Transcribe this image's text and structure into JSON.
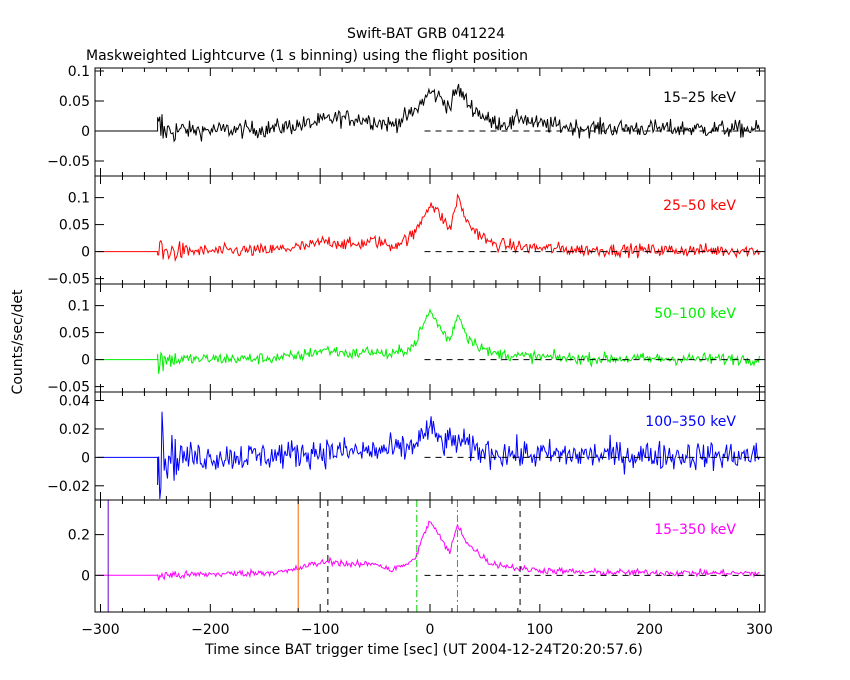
{
  "title": "Swift-BAT GRB 041224",
  "subtitle": "Maskweighted Lightcurve (1 s binning) using the flight position",
  "chart_data": {
    "type": "line",
    "xlabel": "Time since BAT trigger time [sec] (UT 2004-12-24T20:20:57.6)",
    "ylabel": "Counts/sec/det",
    "xlim": [
      -305,
      305
    ],
    "x_ticks": [
      -300,
      -200,
      -100,
      0,
      100,
      200,
      300
    ],
    "x_tick_labels": [
      "−300",
      "−200",
      "−100",
      "0",
      "100",
      "200",
      "300"
    ],
    "data_start": -248,
    "flat_before_start": true,
    "zero_reference_dashed": true,
    "grid": false,
    "panels": [
      {
        "label": "15–25 keV",
        "color": "#000000",
        "ylim": [
          -0.075,
          0.105
        ],
        "y_ticks": [
          -0.05,
          0,
          0.05,
          0.1
        ],
        "y_tick_labels": [
          "−0.05",
          "0",
          "0.05",
          "0.1"
        ],
        "noise": 0.012,
        "envelope": [
          [
            -248,
            0.0
          ],
          [
            -150,
            0.003
          ],
          [
            -110,
            0.012
          ],
          [
            -85,
            0.022
          ],
          [
            -60,
            0.02
          ],
          [
            -35,
            0.01
          ],
          [
            -15,
            0.03
          ],
          [
            0,
            0.065
          ],
          [
            10,
            0.055
          ],
          [
            18,
            0.04
          ],
          [
            25,
            0.072
          ],
          [
            35,
            0.045
          ],
          [
            55,
            0.015
          ],
          [
            75,
            0.012
          ],
          [
            82,
            0.025
          ],
          [
            95,
            0.012
          ],
          [
            140,
            0.005
          ],
          [
            300,
            0.003
          ]
        ]
      },
      {
        "label": "25–50 keV",
        "color": "#ff0000",
        "ylim": [
          -0.06,
          0.14
        ],
        "y_ticks": [
          -0.05,
          0,
          0.05,
          0.1
        ],
        "y_tick_labels": [
          "−0.05",
          "0",
          "0.05",
          "0.1"
        ],
        "noise": 0.01,
        "envelope": [
          [
            -248,
            0.0
          ],
          [
            -150,
            0.002
          ],
          [
            -110,
            0.01
          ],
          [
            -95,
            0.02
          ],
          [
            -70,
            0.012
          ],
          [
            -50,
            0.02
          ],
          [
            -35,
            0.01
          ],
          [
            -15,
            0.03
          ],
          [
            0,
            0.09
          ],
          [
            12,
            0.06
          ],
          [
            18,
            0.04
          ],
          [
            25,
            0.1
          ],
          [
            35,
            0.05
          ],
          [
            55,
            0.015
          ],
          [
            85,
            0.008
          ],
          [
            140,
            0.003
          ],
          [
            300,
            0.002
          ]
        ]
      },
      {
        "label": "50–100 keV",
        "color": "#00ee00",
        "ylim": [
          -0.06,
          0.14
        ],
        "y_ticks": [
          -0.05,
          0,
          0.05,
          0.1
        ],
        "y_tick_labels": [
          "−0.05",
          "0",
          "0.05",
          "0.1"
        ],
        "noise": 0.009,
        "envelope": [
          [
            -248,
            0.0
          ],
          [
            -150,
            0.002
          ],
          [
            -120,
            0.006
          ],
          [
            -110,
            0.012
          ],
          [
            -95,
            0.018
          ],
          [
            -70,
            0.01
          ],
          [
            -55,
            0.016
          ],
          [
            -35,
            0.008
          ],
          [
            -15,
            0.025
          ],
          [
            0,
            0.09
          ],
          [
            12,
            0.05
          ],
          [
            18,
            0.035
          ],
          [
            25,
            0.085
          ],
          [
            35,
            0.04
          ],
          [
            55,
            0.012
          ],
          [
            85,
            0.006
          ],
          [
            140,
            0.002
          ],
          [
            300,
            0.001
          ]
        ]
      },
      {
        "label": "100–350 keV",
        "color": "#0000ff",
        "ylim": [
          -0.03,
          0.046
        ],
        "y_ticks": [
          -0.02,
          0,
          0.02,
          0.04
        ],
        "y_tick_labels": [
          "−0.02",
          "0",
          "0.02",
          "0.04"
        ],
        "noise": 0.0085,
        "envelope": [
          [
            -248,
            0.0
          ],
          [
            -150,
            0.001
          ],
          [
            -100,
            0.004
          ],
          [
            -60,
            0.004
          ],
          [
            -20,
            0.006
          ],
          [
            0,
            0.02
          ],
          [
            12,
            0.01
          ],
          [
            25,
            0.012
          ],
          [
            40,
            0.005
          ],
          [
            80,
            0.002
          ],
          [
            300,
            0.001
          ]
        ]
      },
      {
        "label": "15–350 keV",
        "color": "#ff00ff",
        "ylim": [
          -0.18,
          0.37
        ],
        "y_ticks": [
          0,
          0.2
        ],
        "y_tick_labels": [
          "0",
          "0.2"
        ],
        "noise": 0.014,
        "envelope": [
          [
            -248,
            0.0
          ],
          [
            -180,
            0.008
          ],
          [
            -130,
            0.018
          ],
          [
            -110,
            0.05
          ],
          [
            -90,
            0.07
          ],
          [
            -70,
            0.05
          ],
          [
            -50,
            0.06
          ],
          [
            -35,
            0.025
          ],
          [
            -15,
            0.07
          ],
          [
            0,
            0.27
          ],
          [
            12,
            0.16
          ],
          [
            18,
            0.11
          ],
          [
            25,
            0.25
          ],
          [
            35,
            0.15
          ],
          [
            55,
            0.06
          ],
          [
            85,
            0.03
          ],
          [
            140,
            0.015
          ],
          [
            300,
            0.01
          ]
        ],
        "markers": [
          {
            "x": -293,
            "color": "#6600cc",
            "style": "solid"
          },
          {
            "x": -120,
            "color": "#ff6600",
            "style": "solid"
          },
          {
            "x": -93,
            "color": "#000000",
            "style": "dashed"
          },
          {
            "x": -12,
            "color": "#00cc00",
            "style": "dashdot"
          },
          {
            "x": 25,
            "color": "#00cc00",
            "style": "dashdot"
          },
          {
            "x": 82,
            "color": "#000000",
            "style": "dashed"
          }
        ]
      }
    ]
  }
}
